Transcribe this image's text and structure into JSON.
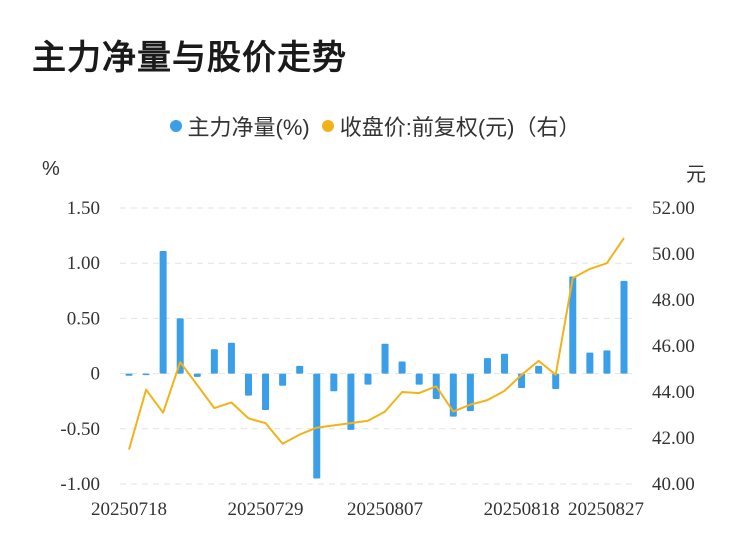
{
  "title": "主力净量与股价走势",
  "legend": {
    "series1": "主力净量(%)",
    "series2": "收盘价:前复权(元)（右）"
  },
  "units": {
    "left": "%",
    "right": "元"
  },
  "colors": {
    "bar": "#3a9ee8",
    "line": "#f2b31a",
    "grid": "#e3e3e3"
  },
  "chart_data": {
    "type": "bar",
    "x_tick_labels": [
      "20250718",
      "20250729",
      "20250807",
      "20250818",
      "20250827"
    ],
    "y_left": {
      "ticks": [
        "1.50",
        "1.00",
        "0.50",
        "0",
        "-0.50",
        "-1.00"
      ],
      "range": [
        -1.0,
        1.5
      ]
    },
    "y_right": {
      "ticks": [
        "52.00",
        "50.00",
        "48.00",
        "46.00",
        "44.00",
        "42.00",
        "40.00"
      ],
      "range": [
        40.0,
        52.0
      ]
    },
    "series": [
      {
        "name": "主力净量(%)",
        "type": "bar",
        "values": [
          -0.02,
          -0.01,
          1.11,
          0.5,
          -0.03,
          0.22,
          0.28,
          -0.2,
          -0.33,
          -0.11,
          0.07,
          -0.95,
          -0.16,
          -0.51,
          -0.1,
          0.27,
          0.11,
          -0.1,
          -0.23,
          -0.39,
          -0.34,
          0.14,
          0.18,
          -0.13,
          0.07,
          -0.14,
          0.88,
          0.19,
          0.21,
          0.84
        ]
      },
      {
        "name": "收盘价:前复权(元)（右）",
        "type": "line",
        "values": [
          41.5,
          44.1,
          43.1,
          45.3,
          44.3,
          43.3,
          43.55,
          42.85,
          42.65,
          41.75,
          42.15,
          42.45,
          42.55,
          42.65,
          42.75,
          43.15,
          44.0,
          43.95,
          44.25,
          43.15,
          43.45,
          43.65,
          44.05,
          44.75,
          45.35,
          44.75,
          48.95,
          49.35,
          49.6,
          50.7
        ]
      }
    ]
  }
}
